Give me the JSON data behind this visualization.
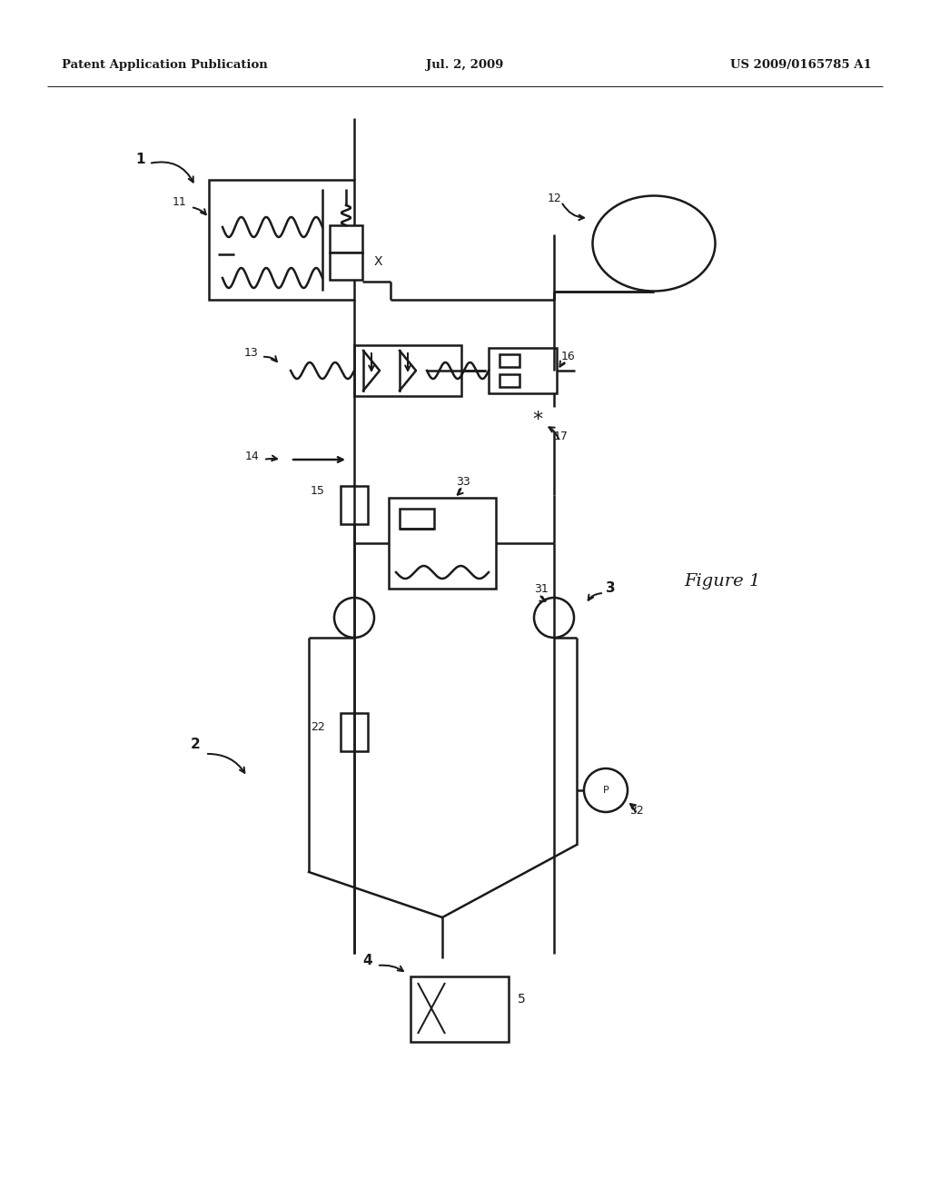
{
  "background_color": "#ffffff",
  "figure_label": "Figure 1",
  "header_left": "Patent Application Publication",
  "header_center": "Jul. 2, 2009",
  "header_right": "US 2009/0165785 A1",
  "line_color": "#1a1a1a",
  "lw": 1.8
}
